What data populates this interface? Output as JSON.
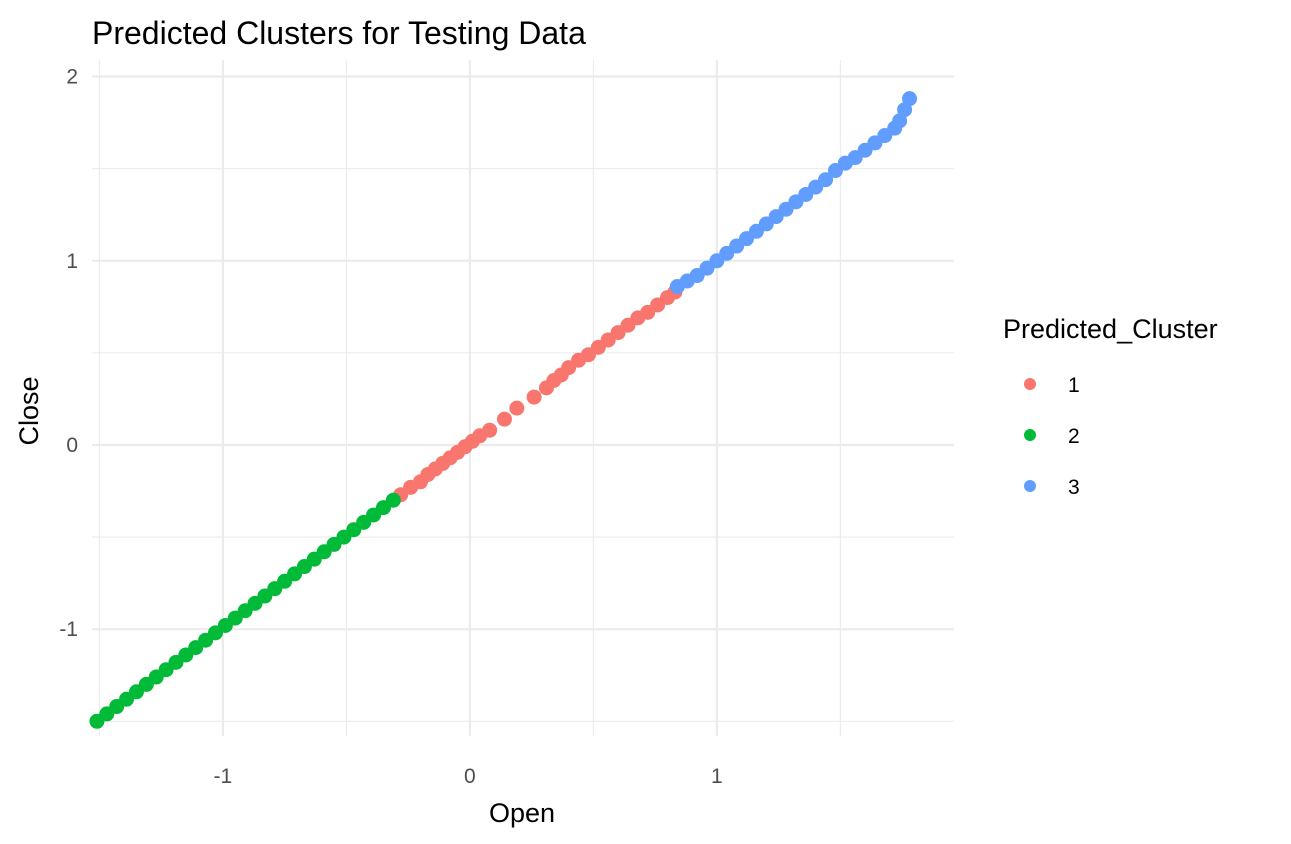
{
  "chart_data": {
    "type": "scatter",
    "title": "Predicted Clusters for Testing Data",
    "xlabel": "Open",
    "ylabel": "Close",
    "xlim": [
      -1.53,
      1.96
    ],
    "ylim": [
      -1.58,
      2.09
    ],
    "x_ticks": [
      -1,
      0,
      1
    ],
    "x_tick_labels": [
      "-1",
      "0",
      "1"
    ],
    "y_ticks": [
      -1,
      0,
      1,
      2
    ],
    "y_tick_labels": [
      "-1",
      "0",
      "1",
      "2"
    ],
    "grid": true,
    "legend": {
      "title": "Predicted_Cluster",
      "position": "right"
    },
    "series": [
      {
        "name": "1",
        "color": "#F8766D",
        "x": [
          -0.28,
          -0.24,
          -0.2,
          -0.17,
          -0.14,
          -0.11,
          -0.08,
          -0.05,
          -0.02,
          0.01,
          0.04,
          0.08,
          0.14,
          0.19,
          0.26,
          0.31,
          0.34,
          0.37,
          0.4,
          0.44,
          0.48,
          0.52,
          0.56,
          0.6,
          0.64,
          0.68,
          0.72,
          0.76,
          0.8,
          0.83
        ],
        "y": [
          -0.27,
          -0.23,
          -0.2,
          -0.16,
          -0.13,
          -0.1,
          -0.07,
          -0.04,
          -0.01,
          0.02,
          0.05,
          0.08,
          0.14,
          0.2,
          0.26,
          0.31,
          0.35,
          0.38,
          0.42,
          0.46,
          0.49,
          0.53,
          0.57,
          0.61,
          0.65,
          0.69,
          0.72,
          0.76,
          0.8,
          0.83
        ]
      },
      {
        "name": "2",
        "color": "#00BA38",
        "x": [
          -1.51,
          -1.47,
          -1.43,
          -1.39,
          -1.35,
          -1.31,
          -1.27,
          -1.23,
          -1.19,
          -1.15,
          -1.11,
          -1.07,
          -1.03,
          -0.99,
          -0.95,
          -0.91,
          -0.87,
          -0.83,
          -0.79,
          -0.75,
          -0.71,
          -0.67,
          -0.63,
          -0.59,
          -0.55,
          -0.51,
          -0.47,
          -0.43,
          -0.39,
          -0.35,
          -0.31
        ],
        "y": [
          -1.5,
          -1.46,
          -1.42,
          -1.38,
          -1.34,
          -1.3,
          -1.26,
          -1.22,
          -1.18,
          -1.14,
          -1.1,
          -1.06,
          -1.02,
          -0.98,
          -0.94,
          -0.9,
          -0.86,
          -0.82,
          -0.78,
          -0.74,
          -0.7,
          -0.66,
          -0.62,
          -0.58,
          -0.54,
          -0.5,
          -0.46,
          -0.42,
          -0.38,
          -0.34,
          -0.3
        ]
      },
      {
        "name": "3",
        "color": "#619CFF",
        "x": [
          0.84,
          0.88,
          0.92,
          0.96,
          1.0,
          1.04,
          1.08,
          1.12,
          1.16,
          1.2,
          1.24,
          1.28,
          1.32,
          1.36,
          1.4,
          1.44,
          1.48,
          1.52,
          1.56,
          1.6,
          1.64,
          1.68,
          1.72,
          1.74,
          1.76,
          1.78
        ],
        "y": [
          0.86,
          0.89,
          0.92,
          0.96,
          1.0,
          1.04,
          1.08,
          1.12,
          1.16,
          1.2,
          1.24,
          1.28,
          1.32,
          1.36,
          1.4,
          1.44,
          1.49,
          1.53,
          1.56,
          1.6,
          1.64,
          1.68,
          1.72,
          1.76,
          1.82,
          1.88
        ]
      }
    ]
  }
}
